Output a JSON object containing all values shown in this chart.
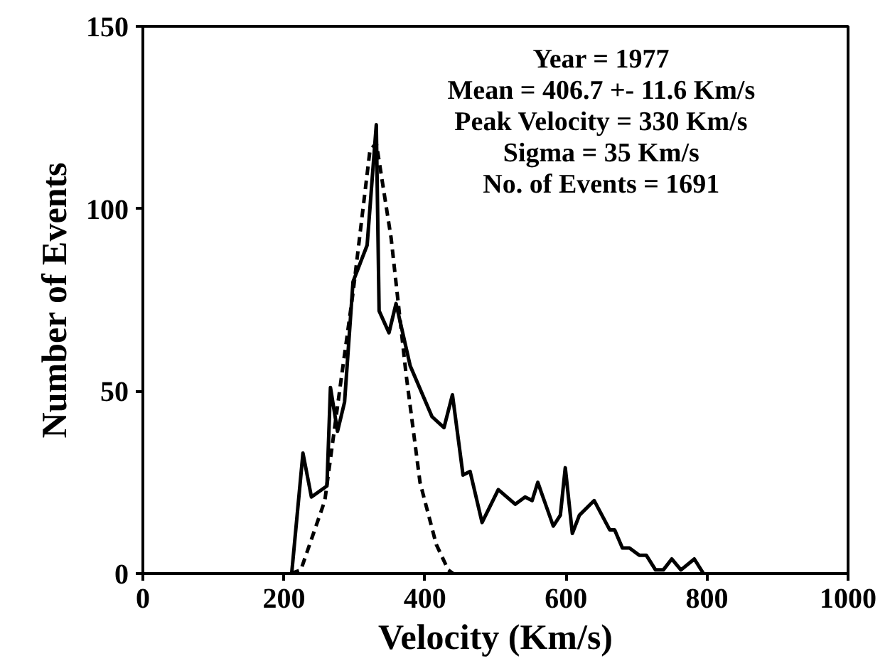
{
  "chart_data": {
    "type": "line",
    "xlabel": "Velocity (Km/s)",
    "ylabel": "Number of Events",
    "annotations": [
      "Year = 1977",
      "Mean = 406.7 +- 11.6 Km/s",
      "Peak Velocity = 330 Km/s",
      "Sigma = 35 Km/s",
      "No. of Events = 1691"
    ],
    "series": [
      {
        "color": "#000000",
        "line_style": "solid",
        "x": [
          211,
          227,
          239,
          261,
          266,
          276,
          286,
          298,
          318,
          331,
          335,
          349,
          359,
          379,
          410,
          427,
          439,
          454,
          464,
          481,
          504,
          528,
          542,
          552,
          560,
          582,
          592,
          599,
          609,
          619,
          640,
          662,
          669,
          680,
          690,
          704,
          714,
          727,
          738,
          750,
          763,
          782,
          795
        ],
        "values": [
          0,
          33,
          21,
          24,
          51,
          39,
          47,
          80,
          90,
          123,
          72,
          66,
          74,
          57,
          43,
          40,
          49,
          27,
          28,
          14,
          23,
          19,
          21,
          20,
          25,
          13,
          16,
          29,
          11,
          16,
          20,
          12,
          12,
          7,
          7,
          5,
          5,
          1,
          1,
          4,
          1,
          4,
          0
        ]
      },
      {
        "color": "#000000",
        "line_style": "dashed",
        "x": [
          210,
          224,
          258,
          281,
          298,
          322,
          331,
          352,
          373,
          393,
          416,
          433,
          440
        ],
        "values": [
          0,
          1,
          20,
          53,
          77,
          116,
          118,
          92,
          55,
          25,
          8,
          1,
          0
        ]
      }
    ],
    "xlim": [
      0,
      1000
    ],
    "ylim": [
      0,
      150
    ],
    "xticks": [
      0,
      200,
      400,
      600,
      800,
      1000
    ],
    "yticks": [
      0,
      50,
      100,
      150
    ],
    "grid": false
  }
}
